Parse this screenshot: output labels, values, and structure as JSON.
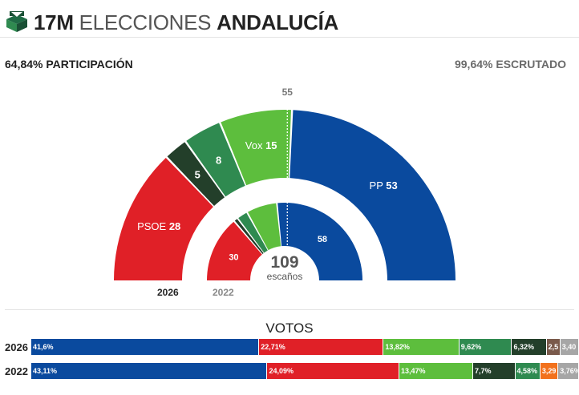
{
  "header": {
    "title_a": "17M",
    "title_b": "ELECCIONES",
    "title_c": "ANDALUCÍA"
  },
  "stats": {
    "participation": "64,84% PARTICIPACIÓN",
    "scrutiny": "99,64% ESCRUTADO"
  },
  "majority_label": "55",
  "center": {
    "total": "109",
    "unit": "escaños"
  },
  "years": {
    "current": "2026",
    "previous": "2022"
  },
  "colors": {
    "pp": "#0a4a9e",
    "psoe": "#e02027",
    "vox": "#5dbe3d",
    "adelante": "#2f8a50",
    "porandalucia": "#233f2a",
    "other1": "#7a5a4b",
    "other2": "#f2711c",
    "other3": "#a6a6a6"
  },
  "chart_data": [
    {
      "type": "pie",
      "title": "2026",
      "total_seats": 109,
      "majority": 55,
      "series": [
        {
          "name": "PSOE",
          "seats": 28,
          "label": "PSOE",
          "color": "#e02027"
        },
        {
          "name": "",
          "seats": 5,
          "label": "",
          "color": "#233f2a"
        },
        {
          "name": "",
          "seats": 8,
          "label": "",
          "color": "#2f8a50"
        },
        {
          "name": "Vox",
          "seats": 15,
          "label": "Vox",
          "color": "#5dbe3d"
        },
        {
          "name": "PP",
          "seats": 53,
          "label": "PP",
          "color": "#0a4a9e"
        }
      ]
    },
    {
      "type": "pie",
      "title": "2022",
      "total_seats": 109,
      "series": [
        {
          "name": "",
          "seats": 30,
          "label": "",
          "color": "#e02027"
        },
        {
          "name": "",
          "seats": 2,
          "label": "",
          "color": "#233f2a"
        },
        {
          "name": "",
          "seats": 5,
          "label": "",
          "color": "#2f8a50"
        },
        {
          "name": "",
          "seats": 14,
          "label": "",
          "color": "#5dbe3d"
        },
        {
          "name": "",
          "seats": 58,
          "label": "",
          "color": "#0a4a9e"
        }
      ]
    },
    {
      "type": "bar",
      "title": "VOTOS",
      "categories": [
        "2026",
        "2022"
      ],
      "rows": [
        {
          "year": "2026",
          "segments": [
            {
              "value": 41.6,
              "label": "41,6%",
              "color": "#0a4a9e"
            },
            {
              "value": 22.71,
              "label": "22,71%",
              "color": "#e02027"
            },
            {
              "value": 13.82,
              "label": "13,82%",
              "color": "#5dbe3d"
            },
            {
              "value": 9.62,
              "label": "9,62%",
              "color": "#2f8a50"
            },
            {
              "value": 6.32,
              "label": "6,32%",
              "color": "#233f2a"
            },
            {
              "value": 2.5,
              "label": "2,5",
              "color": "#7a5a4b"
            },
            {
              "value": 3.4,
              "label": "3,40",
              "color": "#a6a6a6"
            }
          ]
        },
        {
          "year": "2022",
          "segments": [
            {
              "value": 43.11,
              "label": "43,11%",
              "color": "#0a4a9e"
            },
            {
              "value": 24.09,
              "label": "24,09%",
              "color": "#e02027"
            },
            {
              "value": 13.47,
              "label": "13,47%",
              "color": "#5dbe3d"
            },
            {
              "value": 7.7,
              "label": "7,7%",
              "color": "#233f2a"
            },
            {
              "value": 4.58,
              "label": "4,58%",
              "color": "#2f8a50"
            },
            {
              "value": 3.29,
              "label": "3,29",
              "color": "#f2711c"
            },
            {
              "value": 3.76,
              "label": "3,76%",
              "color": "#a6a6a6"
            }
          ]
        }
      ]
    }
  ]
}
